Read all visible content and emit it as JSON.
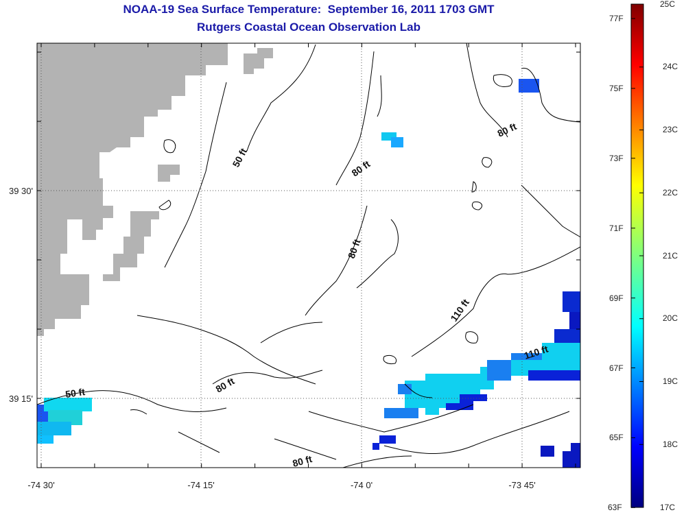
{
  "title": "NOAA-19 Sea Surface Temperature:  September 16, 2011 1703 GMT",
  "subtitle": "Rutgers Coastal Ocean Observation Lab",
  "map": {
    "lon_ticks": [
      "-74 30'",
      "-74 15'",
      "-74 0'",
      "-73 45'"
    ],
    "lat_ticks": [
      "39 30'",
      "39 15'"
    ],
    "contour_labels": [
      "50 ft",
      "80 ft",
      "80 ft",
      "80 ft",
      "110 ft",
      "110 ft",
      "50 ft",
      "80 ft",
      "80 ft"
    ],
    "land_color": "#b3b3b3",
    "grid": true
  },
  "colorbar": {
    "celsius": [
      "25C",
      "24C",
      "23C",
      "22C",
      "21C",
      "20C",
      "19C",
      "18C",
      "17C"
    ],
    "fahrenheit": [
      "77F",
      "75F",
      "73F",
      "71F",
      "69F",
      "67F",
      "65F",
      "63F"
    ],
    "range_c": [
      17,
      25
    ],
    "colormap": "jet"
  }
}
